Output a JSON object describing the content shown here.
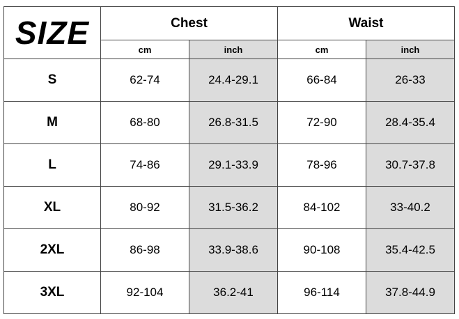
{
  "title": "SIZE",
  "groups": [
    "Chest",
    "Waist"
  ],
  "units": [
    "cm",
    "inch",
    "cm",
    "inch"
  ],
  "rows": [
    {
      "size": "S",
      "chest_cm": "62-74",
      "chest_in": "24.4-29.1",
      "waist_cm": "66-84",
      "waist_in": "26-33"
    },
    {
      "size": "M",
      "chest_cm": "68-80",
      "chest_in": "26.8-31.5",
      "waist_cm": "72-90",
      "waist_in": "28.4-35.4"
    },
    {
      "size": "L",
      "chest_cm": "74-86",
      "chest_in": "29.1-33.9",
      "waist_cm": "78-96",
      "waist_in": "30.7-37.8"
    },
    {
      "size": "XL",
      "chest_cm": "80-92",
      "chest_in": "31.5-36.2",
      "waist_cm": "84-102",
      "waist_in": "33-40.2"
    },
    {
      "size": "2XL",
      "chest_cm": "86-98",
      "chest_in": "33.9-38.6",
      "waist_cm": "90-108",
      "waist_in": "35.4-42.5"
    },
    {
      "size": "3XL",
      "chest_cm": "92-104",
      "chest_in": "36.2-41",
      "waist_cm": "96-114",
      "waist_in": "37.8-44.9"
    }
  ],
  "colors": {
    "inch_column_bg": "#dcdcdc",
    "border": "#444444"
  }
}
